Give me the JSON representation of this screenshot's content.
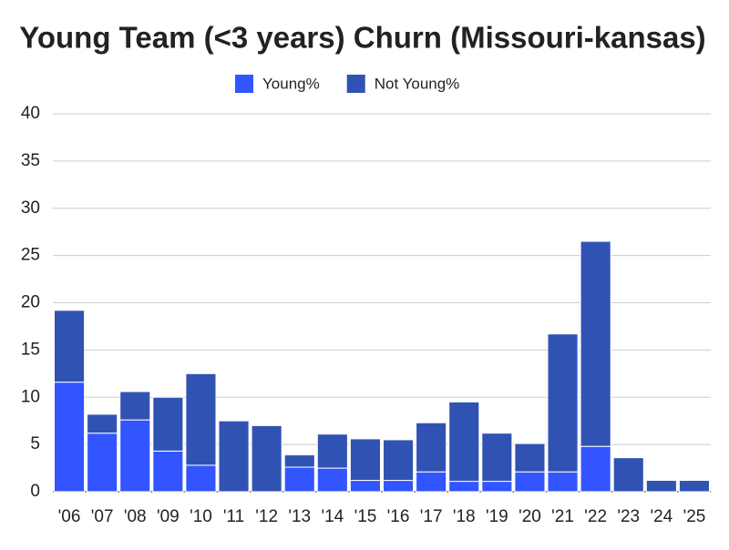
{
  "chart_data": {
    "type": "stacked_bar",
    "title": "Young Team (<3 years) Churn (Missouri-kansas)",
    "categories": [
      "'06",
      "'07",
      "'08",
      "'09",
      "'10",
      "'11",
      "'12",
      "'13",
      "'14",
      "'15",
      "'16",
      "'17",
      "'18",
      "'19",
      "'20",
      "'21",
      "'22",
      "'23",
      "'24",
      "'25"
    ],
    "series": [
      {
        "name": "Young%",
        "color": "#3355ff",
        "values": [
          11.6,
          6.2,
          7.6,
          4.3,
          2.8,
          0,
          0,
          2.6,
          2.5,
          1.2,
          1.2,
          2.1,
          1.1,
          1.1,
          2.1,
          2.1,
          4.8,
          0,
          0,
          0
        ]
      },
      {
        "name": "Not Young%",
        "color": "#3053b3",
        "values": [
          7.6,
          2.0,
          3.0,
          5.7,
          9.7,
          7.5,
          7.0,
          1.3,
          3.6,
          4.4,
          4.3,
          5.2,
          8.4,
          5.1,
          3.0,
          14.6,
          21.7,
          3.6,
          1.2,
          1.2
        ]
      }
    ],
    "ylim": [
      0,
      40
    ],
    "yticks": [
      0,
      5,
      10,
      15,
      20,
      25,
      30,
      35,
      40
    ],
    "grid": true,
    "legend": "top"
  }
}
